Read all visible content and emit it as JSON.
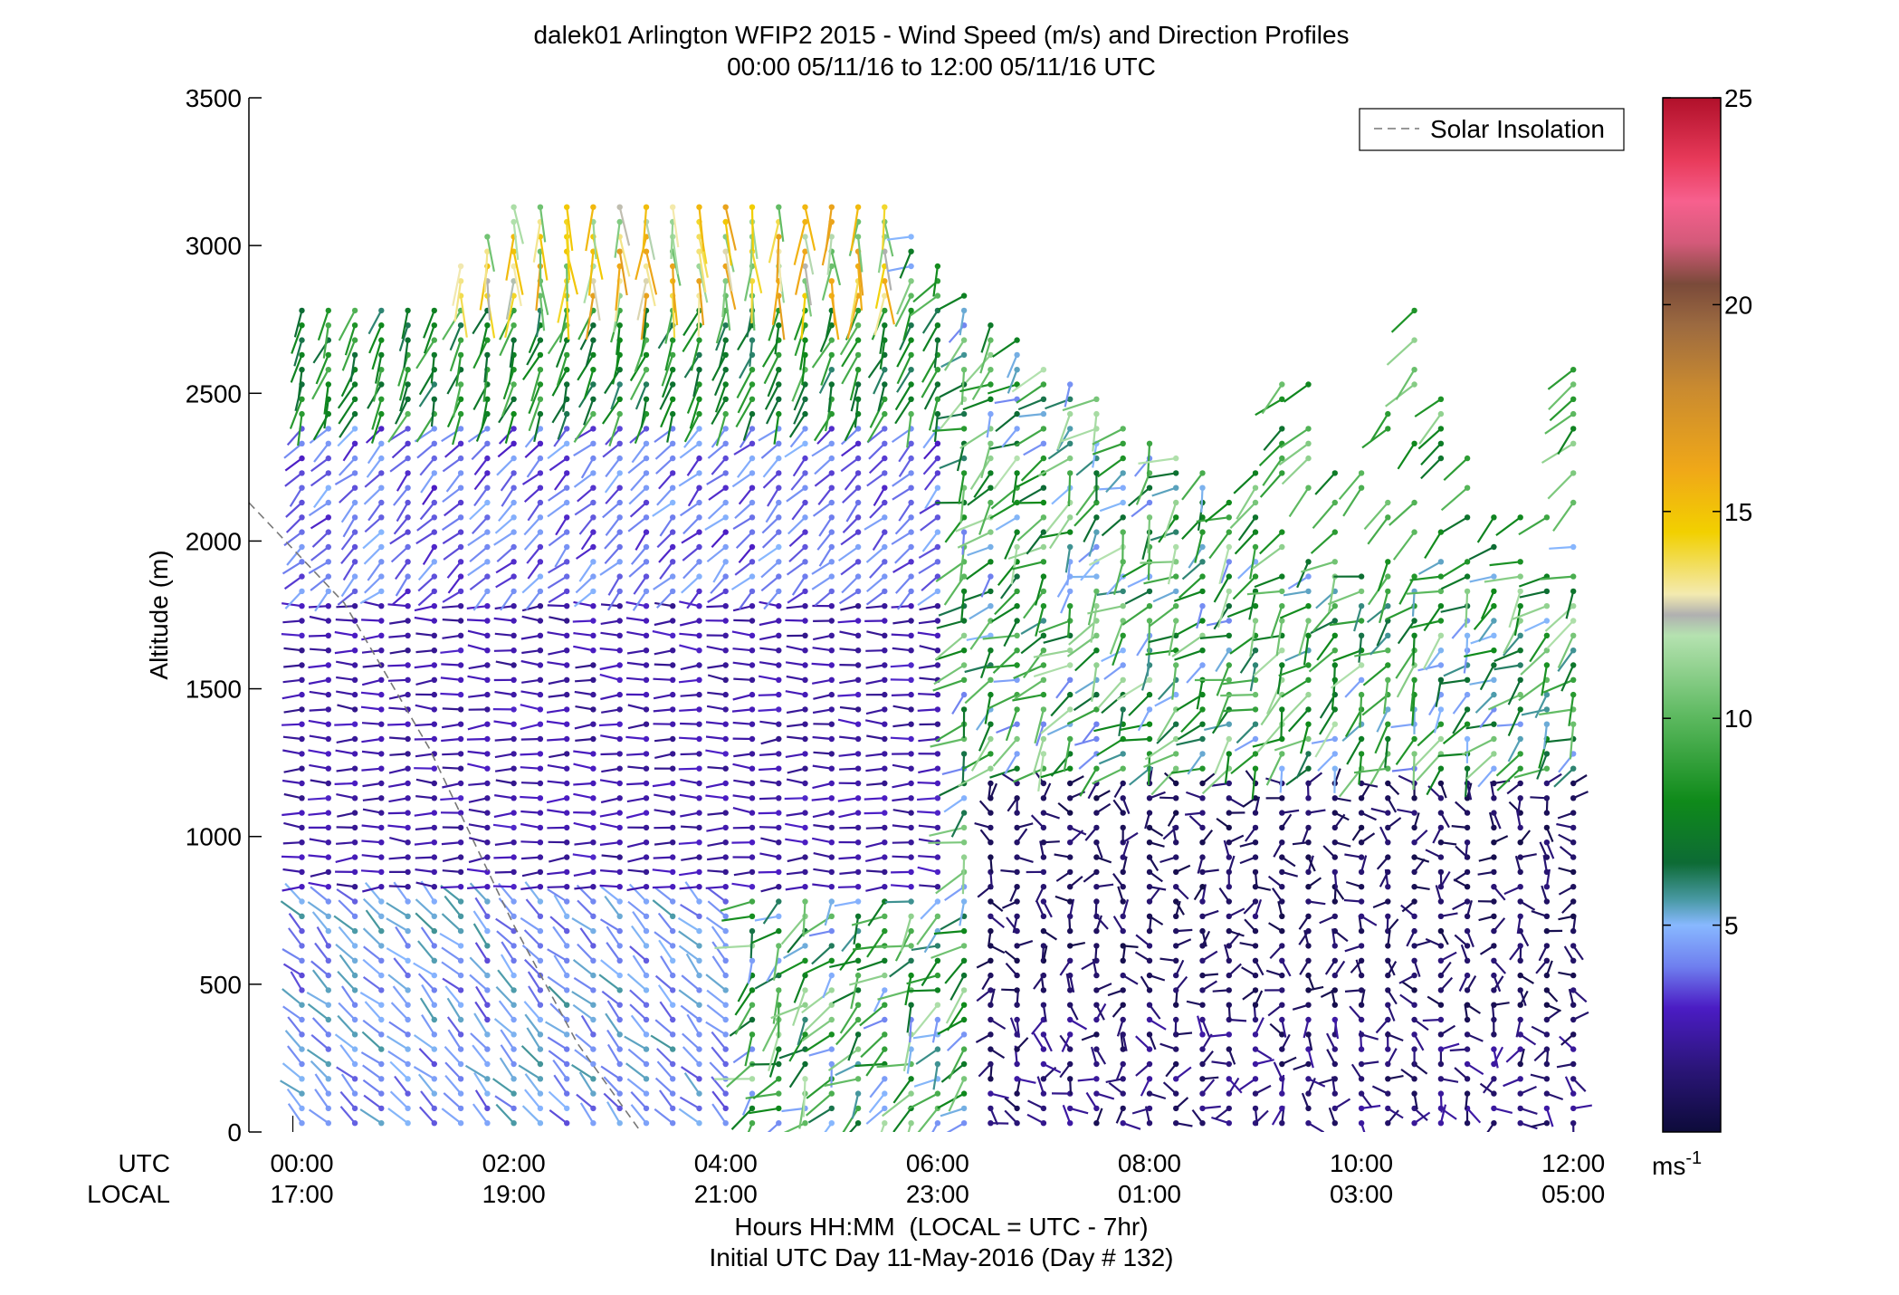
{
  "chart_data": {
    "type": "wind_barb_profile",
    "title": "dalek01 Arlington WFIP2 2015 - Wind Speed (m/s) and Direction Profiles",
    "subtitle": "00:00 05/11/16 to 12:00 05/11/16  UTC",
    "ylabel": "Altitude (m)",
    "xlabel": "Hours HH:MM  (LOCAL = UTC - 7hr)",
    "xlabel2": "Initial UTC Day 11-May-2016 (Day # 132)",
    "row_label_utc": "UTC",
    "row_label_local": "LOCAL",
    "ylim": [
      0,
      3500
    ],
    "xlim_hours": [
      -0.5,
      12.4
    ],
    "y_ticks": [
      0,
      500,
      1000,
      1500,
      2000,
      2500,
      3000,
      3500
    ],
    "x_ticks_hours": [
      0,
      2,
      4,
      6,
      8,
      10,
      12
    ],
    "x_tick_labels_utc": [
      "00:00",
      "02:00",
      "04:00",
      "06:00",
      "08:00",
      "10:00",
      "12:00"
    ],
    "x_tick_labels_local": [
      "17:00",
      "19:00",
      "21:00",
      "23:00",
      "01:00",
      "03:00",
      "05:00"
    ],
    "legend": {
      "entries": [
        "Solar Insolation"
      ],
      "placement": "top-right"
    },
    "solar_insolation_line": [
      [
        -0.5,
        2130
      ],
      [
        0.4,
        1790
      ],
      [
        1.2,
        1300
      ],
      [
        2.0,
        700
      ],
      [
        2.6,
        300
      ],
      [
        3.2,
        0
      ]
    ],
    "colorbar": {
      "ticks": [
        5,
        10,
        15,
        20,
        25
      ],
      "range": [
        0,
        25
      ],
      "unit_label": "ms",
      "unit_exponent": "-1",
      "stops": [
        {
          "v": 0,
          "c": "#0d0b3a"
        },
        {
          "v": 1.5,
          "c": "#2a1577"
        },
        {
          "v": 3,
          "c": "#4b1cc4"
        },
        {
          "v": 4,
          "c": "#6f7fef"
        },
        {
          "v": 5,
          "c": "#88b8ff"
        },
        {
          "v": 5.6,
          "c": "#4a9aa6"
        },
        {
          "v": 6.5,
          "c": "#0d6b35"
        },
        {
          "v": 8,
          "c": "#0f8a1a"
        },
        {
          "v": 10,
          "c": "#5bb85e"
        },
        {
          "v": 12,
          "c": "#b5e2b0"
        },
        {
          "v": 12.5,
          "c": "#b0b0b0"
        },
        {
          "v": 13,
          "c": "#f3eab0"
        },
        {
          "v": 14.5,
          "c": "#f2d000"
        },
        {
          "v": 16,
          "c": "#f0a818"
        },
        {
          "v": 18,
          "c": "#c98a30"
        },
        {
          "v": 19.5,
          "c": "#9c6a40"
        },
        {
          "v": 20.5,
          "c": "#7a4a3a"
        },
        {
          "v": 21.5,
          "c": "#d45a7a"
        },
        {
          "v": 22.5,
          "c": "#f7608e"
        },
        {
          "v": 23.5,
          "c": "#e83a5a"
        },
        {
          "v": 25,
          "c": "#b0102a"
        }
      ]
    },
    "profiles": {
      "time_range_hours": [
        0,
        12.2
      ],
      "time_step_hours": 0.25,
      "altitude_range_m": [
        30,
        3150
      ],
      "altitude_step_m": 50,
      "regimes": [
        {
          "hours": [
            0,
            4
          ],
          "alt": [
            0,
            800
          ],
          "speed_ms": 4.6,
          "direction": "northwest"
        },
        {
          "hours": [
            0,
            6
          ],
          "alt": [
            800,
            1800
          ],
          "speed_ms": 2.5,
          "direction": "west"
        },
        {
          "hours": [
            0,
            6
          ],
          "alt": [
            1800,
            2400
          ],
          "speed_ms": 4.0,
          "direction": "southwest"
        },
        {
          "hours": [
            0,
            6
          ],
          "alt": [
            2400,
            2800
          ],
          "speed_ms": 8.0,
          "direction": "south-southwest"
        },
        {
          "hours": [
            1.5,
            5.5
          ],
          "alt": [
            2800,
            3200
          ],
          "speed_ms": 13.5,
          "direction": "south"
        },
        {
          "hours": [
            6.5,
            12.2
          ],
          "alt": [
            0,
            400
          ],
          "speed_ms": 1.5,
          "direction": "variable"
        },
        {
          "hours": [
            6.5,
            12.2
          ],
          "alt": [
            400,
            1200
          ],
          "speed_ms": 1.0,
          "direction": "variable"
        },
        {
          "hours": [
            9,
            12.2
          ],
          "alt": [
            2000,
            2800
          ],
          "speed_ms": 9.0,
          "direction": "southwest"
        }
      ]
    }
  }
}
